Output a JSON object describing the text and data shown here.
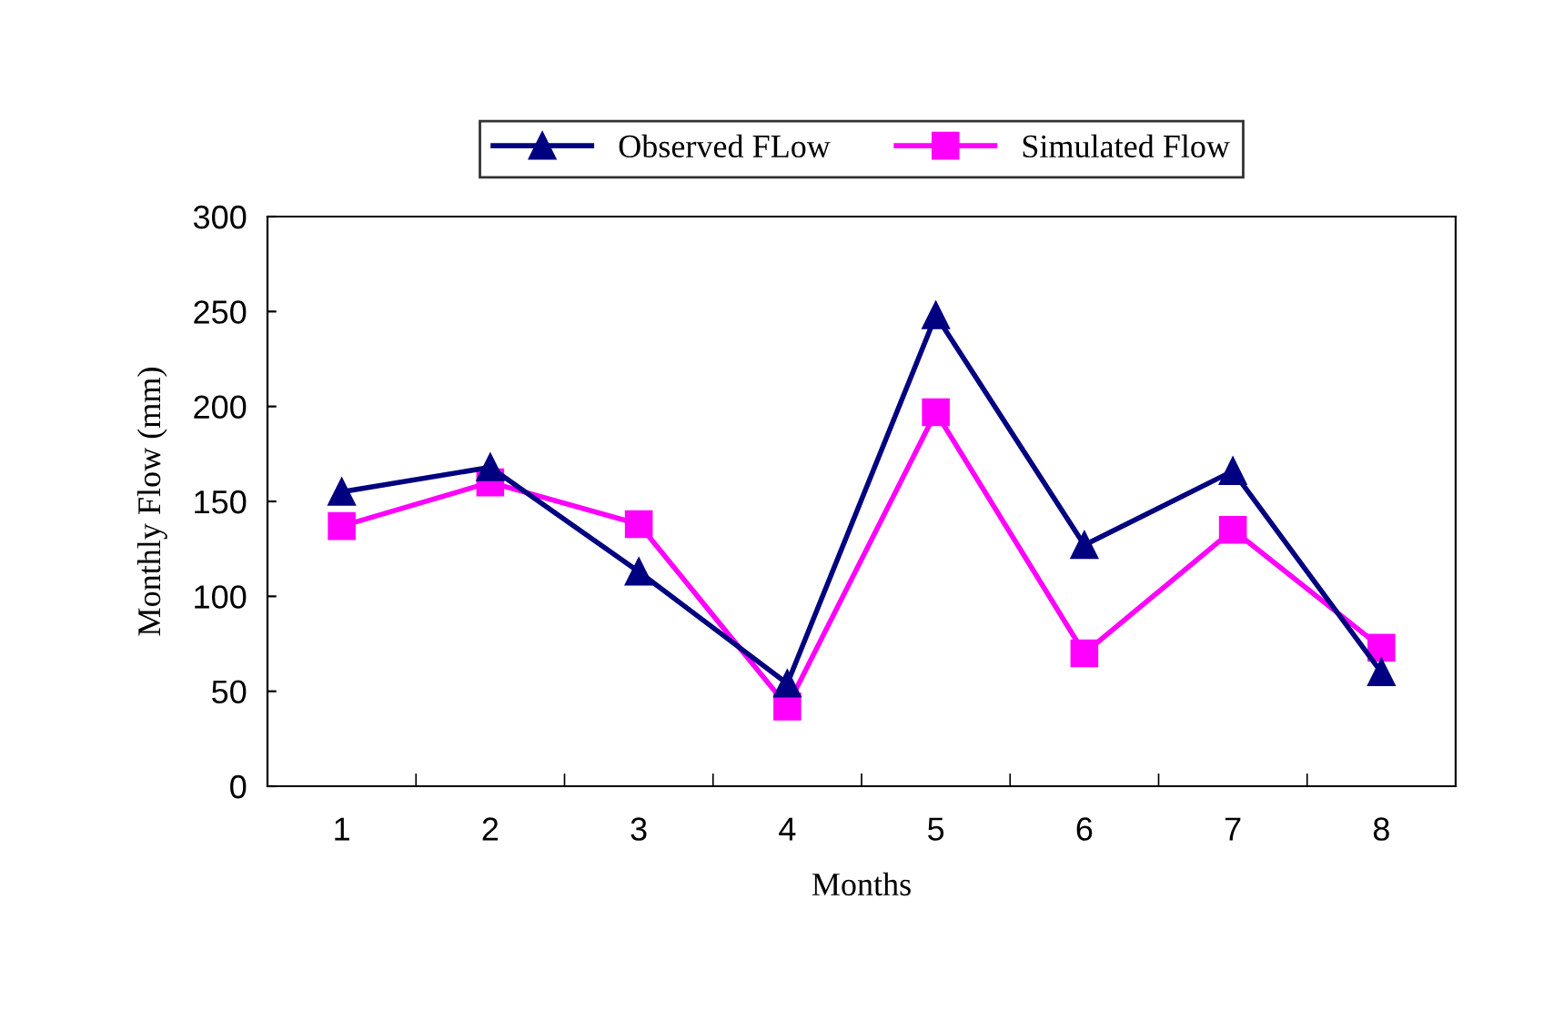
{
  "chart_data": {
    "type": "line",
    "xlabel": "Months",
    "ylabel": "Monthly Flow (mm)",
    "categories": [
      "1",
      "2",
      "3",
      "4",
      "5",
      "6",
      "7",
      "8"
    ],
    "series": [
      {
        "name": "Observed FLow",
        "color": "#000080",
        "marker": "triangle",
        "values": [
          155,
          168,
          113,
          54,
          248,
          127,
          166,
          60
        ]
      },
      {
        "name": "Simulated Flow",
        "color": "#ff00ff",
        "marker": "square",
        "values": [
          137,
          160,
          138,
          42,
          197,
          70,
          135,
          73
        ]
      }
    ],
    "ylim": [
      0,
      300
    ],
    "yticks": [
      0,
      50,
      100,
      150,
      200,
      250,
      300
    ],
    "grid": false,
    "legend": "top",
    "line_style": "solid"
  }
}
